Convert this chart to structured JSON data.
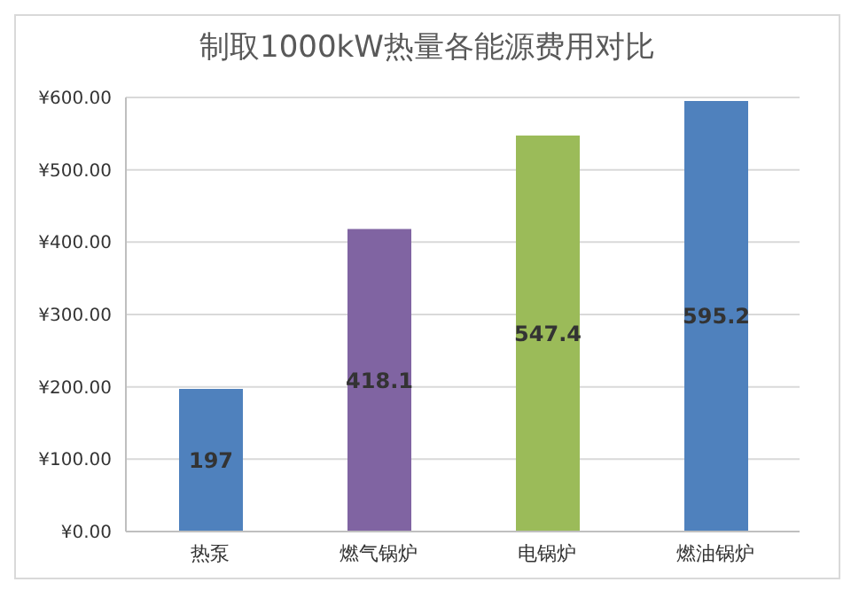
{
  "chart_data": {
    "type": "bar",
    "title": "制取1000kW热量各能源费用对比",
    "categories": [
      "热泵",
      "燃气锅炉",
      "电锅炉",
      "燃油锅炉"
    ],
    "values": [
      197,
      418.1,
      547.4,
      595.2
    ],
    "colors": [
      "#4f81bd",
      "#8064a2",
      "#9bbb59",
      "#4f81bd"
    ],
    "ylim": [
      0,
      600
    ],
    "yticks": [
      {
        "value": 0,
        "label": "¥0.00"
      },
      {
        "value": 100,
        "label": "¥100.00"
      },
      {
        "value": 200,
        "label": "¥200.00"
      },
      {
        "value": 300,
        "label": "¥300.00"
      },
      {
        "value": 400,
        "label": "¥400.00"
      },
      {
        "value": 500,
        "label": "¥500.00"
      },
      {
        "value": 600,
        "label": "¥600.00"
      }
    ],
    "grid": "y",
    "data_labels": true
  }
}
